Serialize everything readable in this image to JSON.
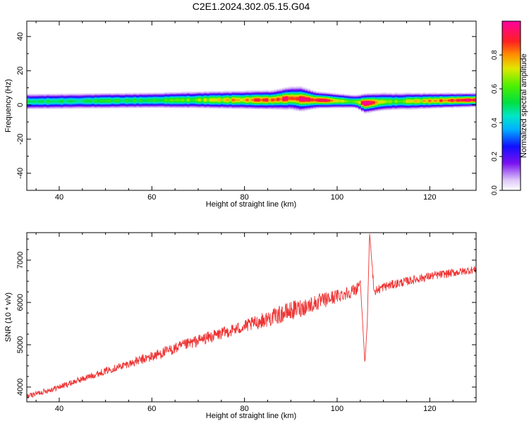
{
  "page_title": "C2E1.2024.302.05.15.G04",
  "chart_data": [
    {
      "type": "heatmap",
      "xlabel": "Height of straight line (km)",
      "ylabel": "Frequency (Hz)",
      "xlim": [
        33,
        130
      ],
      "ylim": [
        -50,
        49
      ],
      "xticks": [
        40,
        60,
        80,
        100,
        120
      ],
      "yticks": [
        -40,
        -20,
        0,
        20,
        40
      ],
      "colorbar": {
        "label": "Normalized spectral amplitude",
        "range": [
          0,
          1
        ],
        "ticks": [
          0.0,
          0.2,
          0.4,
          0.6,
          0.8
        ],
        "colormap": "rainbow (white-purple-blue-cyan-green-yellow-red-magenta)"
      },
      "band": {
        "description": "narrow high-amplitude band near 0-5 Hz across all heights",
        "center_hz": [
          [
            33,
            2
          ],
          [
            50,
            2.5
          ],
          [
            70,
            3
          ],
          [
            86,
            3
          ],
          [
            90,
            4
          ],
          [
            95,
            3
          ],
          [
            100,
            2.5
          ],
          [
            104,
            2
          ],
          [
            106,
            1
          ],
          [
            110,
            2
          ],
          [
            130,
            3
          ]
        ],
        "half_width_hz": [
          [
            33,
            3
          ],
          [
            60,
            3
          ],
          [
            86,
            3.5
          ],
          [
            92,
            4.5
          ],
          [
            96,
            3
          ],
          [
            104,
            2.5
          ],
          [
            106,
            3.5
          ],
          [
            130,
            2.5
          ]
        ],
        "peak_amplitude": [
          [
            33,
            0.5
          ],
          [
            60,
            0.55
          ],
          [
            70,
            0.65
          ],
          [
            80,
            0.8
          ],
          [
            96,
            0.95
          ],
          [
            104,
            0.6
          ],
          [
            106,
            1.0
          ],
          [
            112,
            0.6
          ],
          [
            120,
            0.8
          ],
          [
            130,
            0.95
          ]
        ]
      },
      "series": [
        {
          "name": "Normalized spectral amplitude"
        }
      ]
    },
    {
      "type": "line",
      "xlabel": "Height of straight line (km)",
      "ylabel": "SNR (10 * v/v)",
      "xlim": [
        33,
        130
      ],
      "ylim": [
        3650,
        7650
      ],
      "xticks": [
        40,
        60,
        80,
        100,
        120
      ],
      "yticks": [
        4000,
        5000,
        6000,
        7000
      ],
      "color": "#ee3333",
      "series": [
        {
          "name": "SNR",
          "trend_points": [
            [
              33,
              3780
            ],
            [
              40,
              4000
            ],
            [
              50,
              4380
            ],
            [
              60,
              4720
            ],
            [
              70,
              5100
            ],
            [
              80,
              5430
            ],
            [
              90,
              5800
            ],
            [
              95,
              5970
            ],
            [
              100,
              6150
            ],
            [
              104,
              6300
            ],
            [
              105,
              6500
            ],
            [
              106,
              4550
            ],
            [
              106.5,
              5500
            ],
            [
              107,
              7650
            ],
            [
              108,
              6250
            ],
            [
              110,
              6370
            ],
            [
              115,
              6500
            ],
            [
              120,
              6620
            ],
            [
              125,
              6700
            ],
            [
              130,
              6780
            ]
          ],
          "noise_amplitude": [
            [
              33,
              60
            ],
            [
              55,
              90
            ],
            [
              60,
              130
            ],
            [
              80,
              150
            ],
            [
              90,
              230
            ],
            [
              100,
              170
            ],
            [
              110,
              110
            ],
            [
              130,
              90
            ]
          ]
        }
      ]
    }
  ]
}
